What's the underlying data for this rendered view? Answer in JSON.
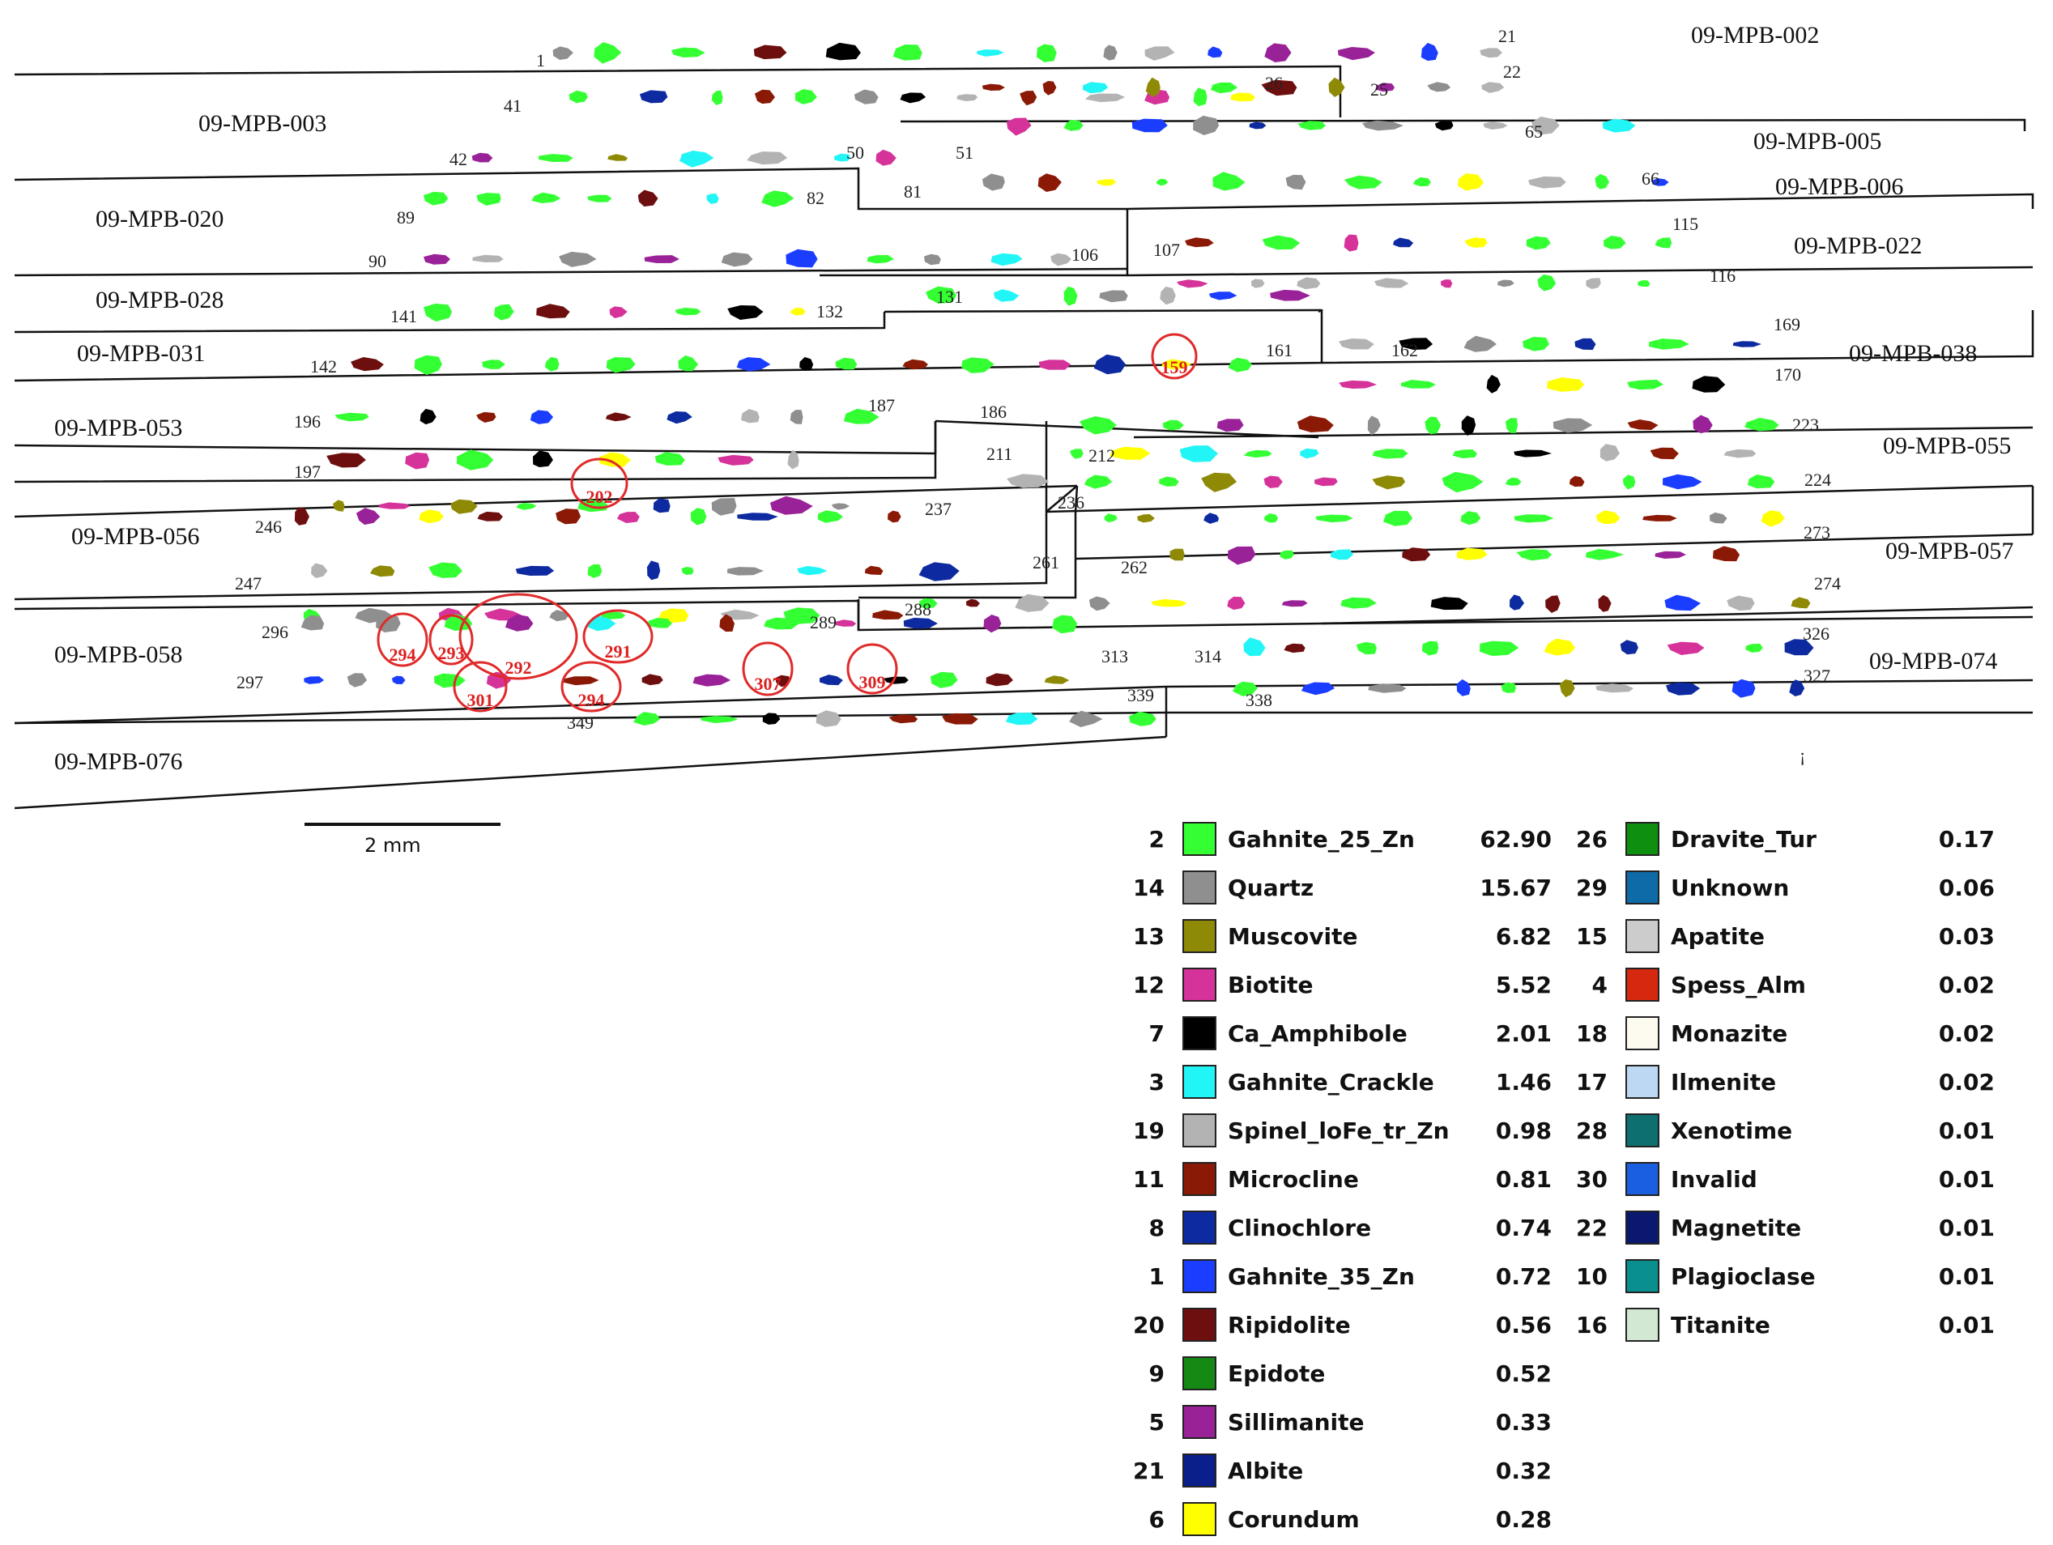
{
  "samples": [
    {
      "id": "09-MPB-002",
      "numbers": [
        "1",
        "21",
        "22"
      ]
    },
    {
      "id": "09-MPB-003",
      "numbers": [
        "41",
        "26",
        "42",
        "50",
        "25"
      ]
    },
    {
      "id": "09-MPB-005",
      "numbers": [
        "51",
        "65"
      ]
    },
    {
      "id": "09-MPB-006",
      "numbers": [
        "81",
        "66"
      ]
    },
    {
      "id": "09-MPB-020",
      "numbers": [
        "89",
        "82",
        "90",
        "106"
      ]
    },
    {
      "id": "09-MPB-022",
      "numbers": [
        "107",
        "115",
        "116"
      ]
    },
    {
      "id": "09-MPB-028",
      "numbers": [
        "141",
        "132",
        "131"
      ]
    },
    {
      "id": "09-MPB-031",
      "numbers": [
        "142",
        "161"
      ]
    },
    {
      "id": "09-MPB-038",
      "numbers": [
        "162",
        "169",
        "170",
        "186"
      ]
    },
    {
      "id": "09-MPB-053",
      "numbers": [
        "196",
        "187",
        "197",
        "211"
      ]
    },
    {
      "id": "09-MPB-055",
      "numbers": [
        "212",
        "223",
        "236",
        "224"
      ]
    },
    {
      "id": "09-MPB-056",
      "numbers": [
        "246",
        "237",
        "247",
        "261"
      ]
    },
    {
      "id": "09-MPB-057",
      "numbers": [
        "262",
        "273",
        "288",
        "274"
      ]
    },
    {
      "id": "09-MPB-058",
      "numbers": [
        "296",
        "289",
        "297",
        "313",
        "349",
        "339"
      ]
    },
    {
      "id": "09-MPB-074",
      "numbers": [
        "314",
        "326",
        "338",
        "327"
      ]
    },
    {
      "id": "09-MPB-076",
      "numbers": []
    }
  ],
  "circled": [
    "159",
    "202",
    "294",
    "293",
    "292",
    "291",
    "301",
    "294",
    "307",
    "309"
  ],
  "scale_bar": {
    "label": "2 mm"
  },
  "footnote": "¡",
  "legend": [
    {
      "id": "2",
      "name": "Gahnite_25_Zn",
      "value": "62.90",
      "color": "#33ff33"
    },
    {
      "id": "14",
      "name": "Quartz",
      "value": "15.67",
      "color": "#8f8f8f"
    },
    {
      "id": "13",
      "name": "Muscovite",
      "value": "6.82",
      "color": "#8f8a06"
    },
    {
      "id": "12",
      "name": "Biotite",
      "value": "5.52",
      "color": "#d6339a"
    },
    {
      "id": "7",
      "name": "Ca_Amphibole",
      "value": "2.01",
      "color": "#000000"
    },
    {
      "id": "3",
      "name": "Gahnite_Crackle",
      "value": "1.46",
      "color": "#22f5f5"
    },
    {
      "id": "19",
      "name": "Spinel_loFe_tr_Zn",
      "value": "0.98",
      "color": "#b3b3b3"
    },
    {
      "id": "11",
      "name": "Microcline",
      "value": "0.81",
      "color": "#8a1a06"
    },
    {
      "id": "8",
      "name": "Clinochlore",
      "value": "0.74",
      "color": "#0e2aa0"
    },
    {
      "id": "1",
      "name": "Gahnite_35_Zn",
      "value": "0.72",
      "color": "#1a3dff"
    },
    {
      "id": "20",
      "name": "Ripidolite",
      "value": "0.56",
      "color": "#6e0f0f"
    },
    {
      "id": "9",
      "name": "Epidote",
      "value": "0.52",
      "color": "#148a14"
    },
    {
      "id": "5",
      "name": "Sillimanite",
      "value": "0.33",
      "color": "#9a2299"
    },
    {
      "id": "21",
      "name": "Albite",
      "value": "0.32",
      "color": "#0a1f8c"
    },
    {
      "id": "6",
      "name": "Corundum",
      "value": "0.28",
      "color": "#ffff00"
    },
    {
      "id": "26",
      "name": "Dravite_Tur",
      "value": "0.17",
      "color": "#0f8f0f"
    },
    {
      "id": "29",
      "name": "Unknown",
      "value": "0.06",
      "color": "#0f6aa8"
    },
    {
      "id": "15",
      "name": "Apatite",
      "value": "0.03",
      "color": "#cccccc"
    },
    {
      "id": "4",
      "name": "Spess_Alm",
      "value": "0.02",
      "color": "#d6280f"
    },
    {
      "id": "18",
      "name": "Monazite",
      "value": "0.02",
      "color": "#fdfaf0"
    },
    {
      "id": "17",
      "name": "Ilmenite",
      "value": "0.02",
      "color": "#bcd8f2"
    },
    {
      "id": "28",
      "name": "Xenotime",
      "value": "0.01",
      "color": "#0e6f70"
    },
    {
      "id": "30",
      "name": "Invalid",
      "value": "0.01",
      "color": "#1a5fe0"
    },
    {
      "id": "22",
      "name": "Magnetite",
      "value": "0.01",
      "color": "#0a1870"
    },
    {
      "id": "10",
      "name": "Plagioclase",
      "value": "0.01",
      "color": "#0a8f8f"
    },
    {
      "id": "16",
      "name": "Titanite",
      "value": "0.01",
      "color": "#d2e8d2"
    }
  ]
}
